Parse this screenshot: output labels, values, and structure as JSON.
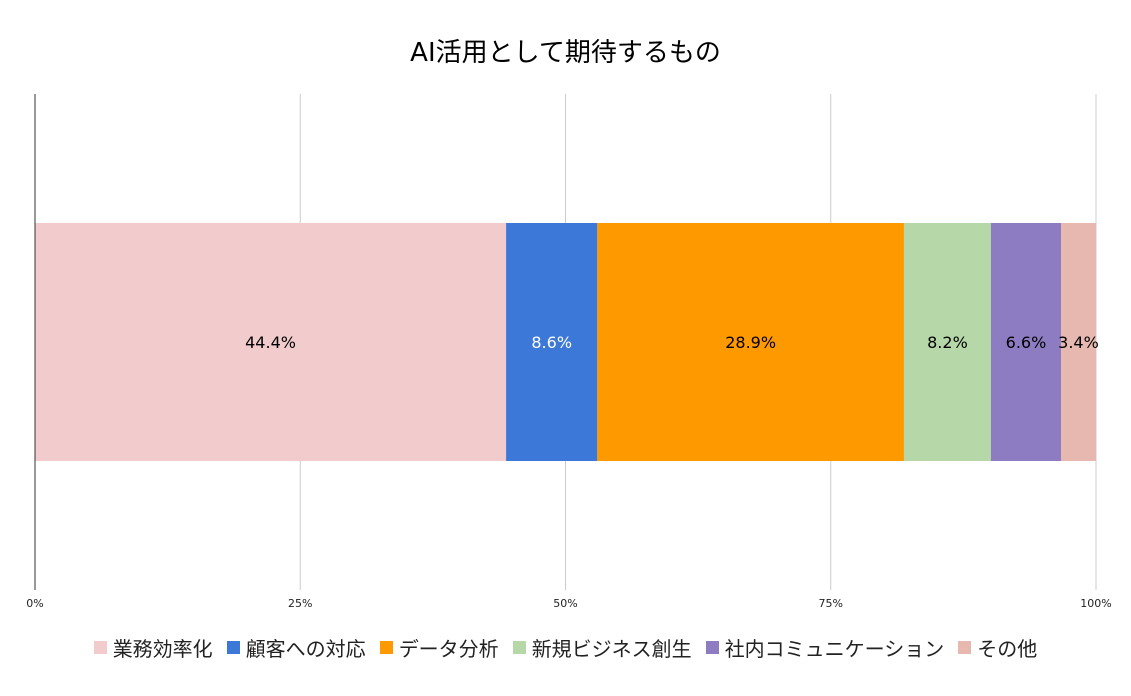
{
  "chart_data": {
    "type": "bar",
    "orientation": "horizontal-stacked-100",
    "title": "AI活用として期待するもの",
    "xlim": [
      0,
      100
    ],
    "x_ticks": [
      "0%",
      "25%",
      "50%",
      "75%",
      "100%"
    ],
    "x_tick_values": [
      0,
      25,
      50,
      75,
      100
    ],
    "grid": true,
    "legend_position": "bottom",
    "series": [
      {
        "name": "業務効率化",
        "value": 44.4,
        "label": "44.4%",
        "color": "#f2cccc",
        "label_color": "#000000"
      },
      {
        "name": "顧客への対応",
        "value": 8.6,
        "label": "8.6%",
        "color": "#3c78d8",
        "label_color": "#ffffff"
      },
      {
        "name": "データ分析",
        "value": 28.9,
        "label": "28.9%",
        "color": "#ff9900",
        "label_color": "#000000"
      },
      {
        "name": "新規ビジネス創生",
        "value": 8.2,
        "label": "8.2%",
        "color": "#b6d7a8",
        "label_color": "#000000"
      },
      {
        "name": "社内コミュニケーション",
        "value": 6.6,
        "label": "6.6%",
        "color": "#8e7cc3",
        "label_color": "#000000"
      },
      {
        "name": "その他",
        "value": 3.4,
        "label": "3.4%",
        "color": "#e6b8af",
        "label_color": "#000000"
      }
    ]
  }
}
